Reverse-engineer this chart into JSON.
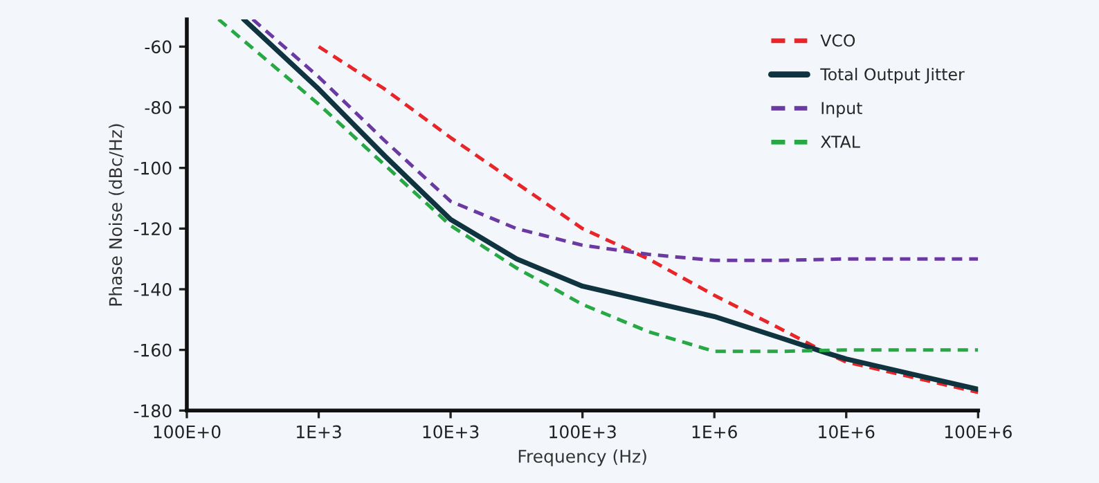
{
  "chart_data": {
    "type": "line",
    "xlabel": "Frequency (Hz)",
    "ylabel": "Phase Noise (dBc/Hz)",
    "log": "x",
    "xlim": [
      100,
      100000000
    ],
    "ylim": [
      -180,
      -51
    ],
    "xticks": [
      {
        "value": 100,
        "label": "100E+0"
      },
      {
        "value": 1000,
        "label": "1E+3"
      },
      {
        "value": 10000,
        "label": "10E+3"
      },
      {
        "value": 100000,
        "label": "100E+3"
      },
      {
        "value": 1000000,
        "label": "1E+6"
      },
      {
        "value": 10000000,
        "label": "10E+6"
      },
      {
        "value": 100000000,
        "label": "100E+6"
      }
    ],
    "yticks": [
      -180,
      -160,
      -140,
      -120,
      -100,
      -80,
      -60
    ],
    "grid": false,
    "legend": "top right",
    "series": [
      {
        "name": "VCO",
        "color": "#e8262a",
        "line_style": "dashed",
        "x": [
          1000,
          3162,
          10000,
          31623,
          100000,
          316228,
          1000000,
          3162278,
          7079458,
          10000000,
          31622777,
          100000000
        ],
        "values": [
          -60,
          -74,
          -90,
          -105,
          -120,
          -130,
          -142,
          -153,
          -161,
          -164,
          -169,
          -174
        ]
      },
      {
        "name": "Total Output Jitter",
        "color": "#0f3440",
        "line_style": "solid",
        "x": [
          270,
          1000,
          3162,
          10000,
          31623,
          100000,
          316228,
          1000000,
          3162278,
          7079458,
          10000000,
          31622777,
          100000000
        ],
        "values": [
          -51,
          -74,
          -96,
          -117,
          -130,
          -139,
          -144,
          -149,
          -156,
          -161,
          -163,
          -168,
          -173
        ]
      },
      {
        "name": "Input",
        "color": "#6a3aa2",
        "line_style": "dashed",
        "x": [
          316,
          1000,
          3162,
          10000,
          31623,
          100000,
          316228,
          1000000,
          3162278,
          10000000,
          100000000
        ],
        "values": [
          -51,
          -70,
          -91,
          -111,
          -120,
          -125.5,
          -128.5,
          -130.5,
          -130.5,
          -130,
          -130
        ]
      },
      {
        "name": "XTAL",
        "color": "#27a844",
        "line_style": "dashed",
        "x": [
          174,
          1000,
          3162,
          10000,
          31623,
          100000,
          316228,
          1000000,
          3162278,
          10000000,
          100000000
        ],
        "values": [
          -51,
          -79,
          -99,
          -119,
          -133,
          -145,
          -154,
          -160.5,
          -160.5,
          -160,
          -160
        ]
      }
    ]
  }
}
